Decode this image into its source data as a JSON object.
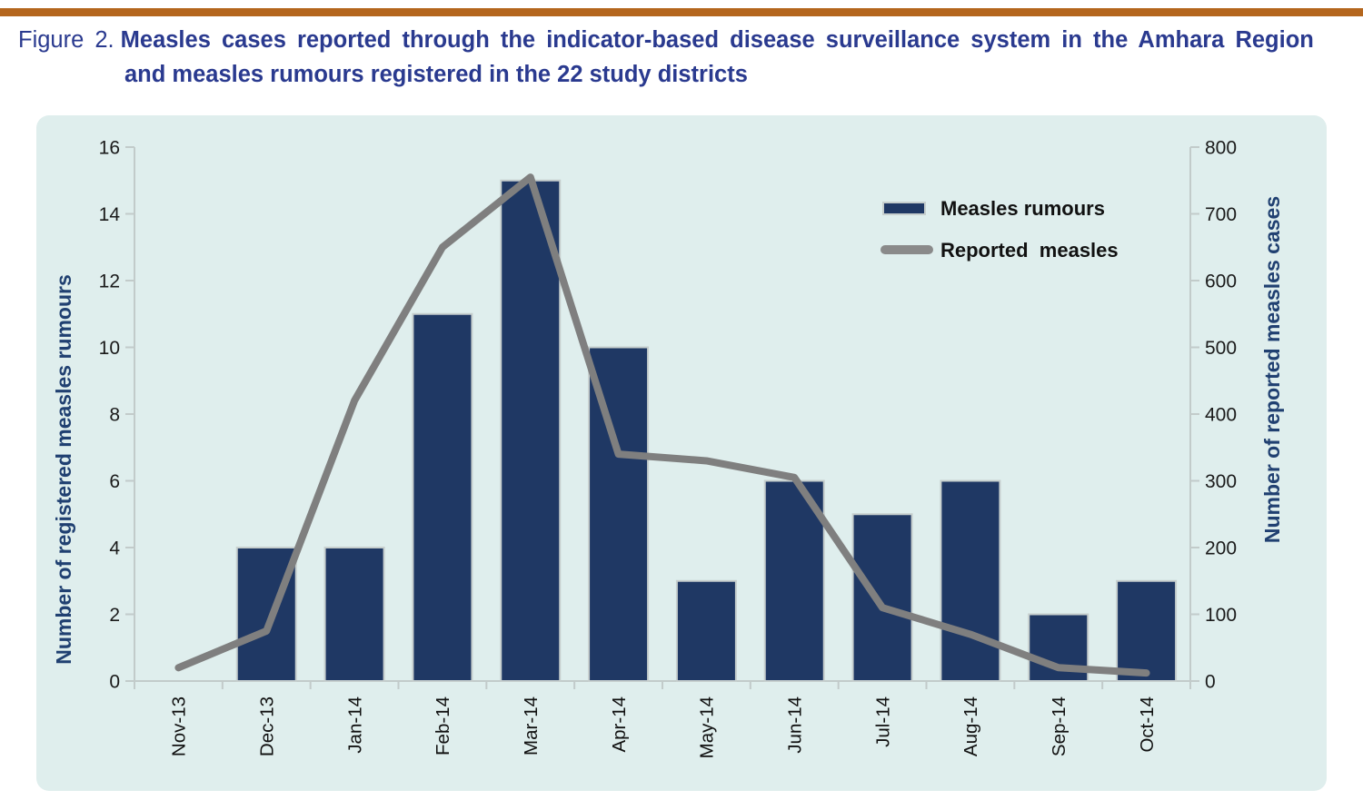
{
  "title": {
    "figure_label": "Figure 2.",
    "line1": "Measles cases reported through the indicator-based disease surveillance system in the Amhara Region",
    "line2": "and measles rumours registered in the 22 study districts"
  },
  "colors": {
    "accent_rule": "#B4661E",
    "title_text": "#2A3A8F",
    "panel_bg": "#DFEEED",
    "bar": "#1F3864",
    "bar_border": "#C6CECD",
    "line": "#7F7F7F",
    "legend_line": "#8A8A8A",
    "axis": "#C2CBCA",
    "axis_label_text": "#204071",
    "tick_text": "#1A1A1A"
  },
  "chart_data": {
    "type": "bar",
    "subtype": "combo-bar-line",
    "categories": [
      "Nov-13",
      "Dec-13",
      "Jan-14",
      "Feb-14",
      "Mar-14",
      "Apr-14",
      "May-14",
      "Jun-14",
      "Jul-14",
      "Aug-14",
      "Sep-14",
      "Oct-14"
    ],
    "series": [
      {
        "name": "Measles rumours",
        "chart": "bar",
        "axis": "left",
        "color": "#1F3864",
        "values": [
          0,
          4,
          4,
          11,
          15,
          10,
          3,
          6,
          5,
          6,
          2,
          3
        ]
      },
      {
        "name": "Reported measles",
        "chart": "line",
        "axis": "right",
        "color": "#7F7F7F",
        "values": [
          20,
          75,
          420,
          650,
          755,
          340,
          330,
          305,
          110,
          70,
          20,
          12
        ]
      }
    ],
    "left_axis": {
      "label": "Number of registered measles rumours",
      "min": 0,
      "max": 16,
      "step": 2,
      "ticks": [
        0,
        2,
        4,
        6,
        8,
        10,
        12,
        14,
        16
      ]
    },
    "right_axis": {
      "label": "Number of reported measles cases",
      "min": 0,
      "max": 800,
      "step": 100,
      "ticks": [
        0,
        100,
        200,
        300,
        400,
        500,
        600,
        700,
        800
      ]
    },
    "legend": [
      {
        "label": "Measles rumours",
        "marker": "bar"
      },
      {
        "label": "Reported  measles",
        "marker": "line"
      }
    ],
    "legend_position": "top-right",
    "grid": false
  }
}
